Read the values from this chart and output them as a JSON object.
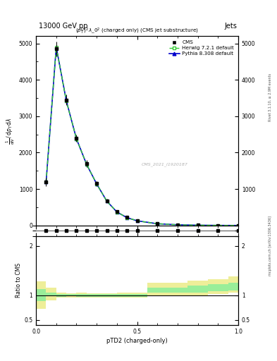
{
  "title_top": "13000 GeV pp",
  "title_right": "Jets",
  "plot_title": "$(p_T^P)^2\\lambda\\_0^2$ (charged only) (CMS jet substructure)",
  "xlabel": "pTD2 (charged-only)",
  "ylabel_ratio": "Ratio to CMS",
  "watermark": "CMS_2021_I1920187",
  "rivet_label": "Rivet 3.1.10, ≥ 2.9M events",
  "arxiv_label": "mcplots.cern.ch [arXiv:1306.3436]",
  "x_data": [
    0.05,
    0.1,
    0.15,
    0.2,
    0.25,
    0.3,
    0.35,
    0.4,
    0.45,
    0.5,
    0.6,
    0.7,
    0.8,
    0.9,
    1.0
  ],
  "cms_y": [
    1200,
    4850,
    3450,
    2400,
    1700,
    1150,
    680,
    380,
    220,
    130,
    50,
    20,
    8,
    3,
    1
  ],
  "cms_err": [
    120,
    200,
    150,
    100,
    90,
    70,
    45,
    30,
    20,
    15,
    6,
    3,
    2,
    1,
    0.5
  ],
  "herwig_y": [
    1200,
    4900,
    3420,
    2380,
    1680,
    1140,
    670,
    370,
    215,
    128,
    48,
    19,
    7,
    2.5,
    0.8
  ],
  "pythia_y": [
    1200,
    4900,
    3420,
    2380,
    1680,
    1140,
    670,
    370,
    215,
    128,
    48,
    19,
    7,
    2.5,
    0.8
  ],
  "bin_edges": [
    0.0,
    0.05,
    0.1,
    0.15,
    0.2,
    0.25,
    0.3,
    0.35,
    0.4,
    0.45,
    0.55,
    0.65,
    0.75,
    0.85,
    0.95,
    1.0
  ],
  "ratio_green_lo": [
    0.88,
    0.98,
    0.97,
    0.98,
    0.97,
    0.97,
    0.97,
    0.97,
    0.97,
    0.97,
    1.05,
    1.05,
    1.05,
    1.08,
    1.1
  ],
  "ratio_green_hi": [
    1.12,
    1.05,
    1.03,
    1.02,
    1.03,
    1.03,
    1.03,
    1.03,
    1.03,
    1.03,
    1.15,
    1.15,
    1.2,
    1.22,
    1.25
  ],
  "ratio_yellow_lo": [
    0.72,
    0.9,
    0.95,
    0.96,
    0.95,
    0.96,
    0.96,
    0.96,
    0.95,
    0.95,
    1.0,
    1.0,
    1.0,
    1.03,
    1.05
  ],
  "ratio_yellow_hi": [
    1.28,
    1.15,
    1.05,
    1.04,
    1.05,
    1.04,
    1.04,
    1.04,
    1.05,
    1.05,
    1.25,
    1.25,
    1.3,
    1.33,
    1.38
  ],
  "xlim": [
    0.0,
    1.0
  ],
  "ylim_main": [
    0,
    5200
  ],
  "ylim_ratio": [
    0.4,
    2.2
  ],
  "ratio_yticks": [
    0.5,
    1.0,
    2.0
  ],
  "main_yticks": [
    0,
    1000,
    2000,
    3000,
    4000,
    5000
  ],
  "background_color": "#ffffff",
  "cms_color": "#000000",
  "herwig_color": "#33cc33",
  "pythia_color": "#0000cc",
  "green_band_color": "#99ee99",
  "yellow_band_color": "#eeee99"
}
